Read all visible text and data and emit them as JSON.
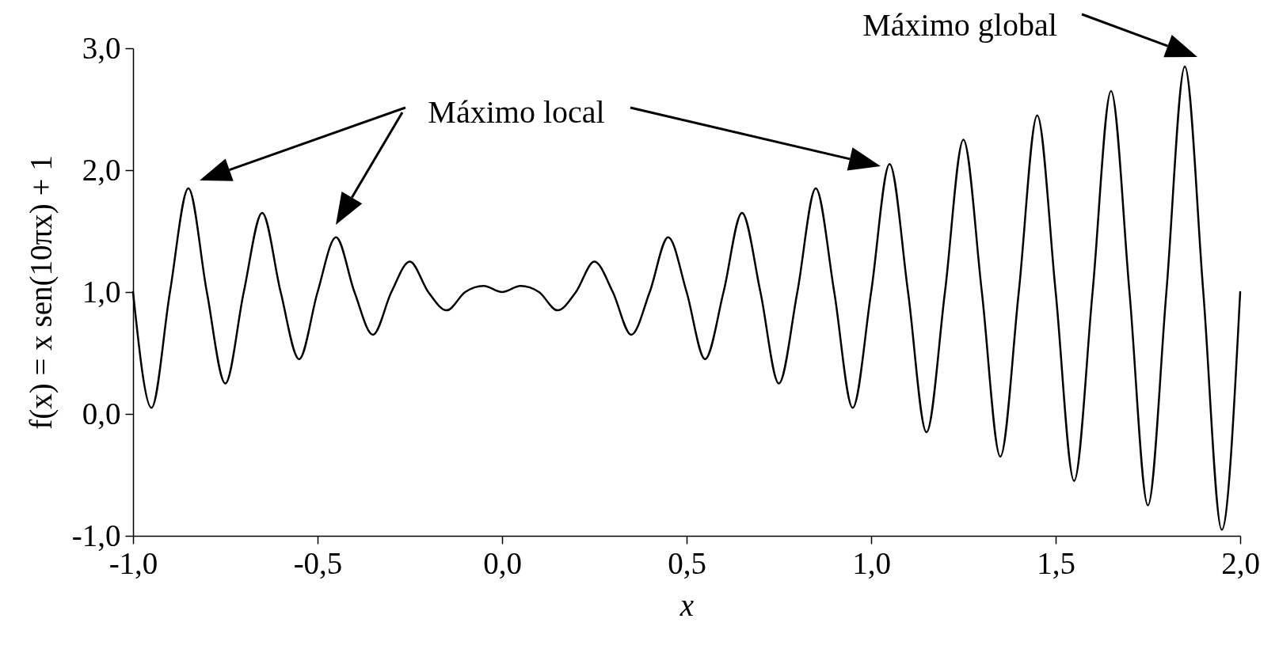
{
  "chart_data": {
    "type": "line",
    "xlabel": "x",
    "ylabel": "f(x) = x sen(10πx) + 1",
    "x": [
      -1.0,
      -0.95,
      -0.9,
      -0.85,
      -0.8,
      -0.75,
      -0.7,
      -0.65,
      -0.6,
      -0.55,
      -0.5,
      -0.45,
      -0.4,
      -0.35,
      -0.3,
      -0.25,
      -0.2,
      -0.15,
      -0.1,
      -0.05,
      0.0,
      0.05,
      0.1,
      0.15,
      0.2,
      0.25,
      0.3,
      0.35,
      0.4,
      0.45,
      0.5,
      0.55,
      0.6,
      0.65,
      0.7,
      0.75,
      0.8,
      0.85,
      0.9,
      0.95,
      1.0,
      1.05,
      1.1,
      1.15,
      1.2,
      1.25,
      1.3,
      1.35,
      1.4,
      1.45,
      1.5,
      1.55,
      1.6,
      1.65,
      1.7,
      1.75,
      1.8,
      1.85,
      1.9,
      1.95,
      2.0
    ],
    "series": [
      {
        "color": "#000000",
        "values": [
          1,
          0.05,
          1,
          1.85,
          1,
          0.25,
          1,
          1.65,
          1,
          0.45,
          1,
          1.45,
          1,
          0.65,
          1,
          1.25,
          1,
          0.85,
          1,
          1.05,
          1,
          1.05,
          1,
          0.85,
          1,
          1.25,
          1,
          0.65,
          1,
          1.45,
          1,
          0.45,
          1,
          1.65,
          1,
          0.25,
          1,
          1.85,
          1,
          0.05,
          1,
          2.05,
          1,
          -0.15,
          1,
          2.25,
          1,
          -0.35,
          1,
          2.45,
          1,
          -0.55,
          1,
          2.65,
          1,
          -0.75,
          1,
          2.85,
          1,
          -0.95,
          1
        ]
      }
    ],
    "xlim": [
      -1,
      2
    ],
    "xticks": [
      {
        "value": -1,
        "label": "-1,0"
      },
      {
        "value": -0.5,
        "label": "-0,5"
      },
      {
        "value": 0,
        "label": "0,0"
      },
      {
        "value": 0.5,
        "label": "0,5"
      },
      {
        "value": 1,
        "label": "1,0"
      },
      {
        "value": 1.5,
        "label": "1,5"
      },
      {
        "value": 2,
        "label": "2,0"
      }
    ],
    "ylim": [
      -1,
      3
    ],
    "yticks": [
      {
        "value": -1,
        "label": "-1,0"
      },
      {
        "value": 0,
        "label": "0,0"
      },
      {
        "value": 1,
        "label": "1,0"
      },
      {
        "value": 2,
        "label": "2,0"
      },
      {
        "value": 3,
        "label": "3,0"
      }
    ],
    "grid": false,
    "legend": false,
    "marker": "none",
    "line_style": "solid",
    "annotations": [
      "Máximo local",
      "Máximo global"
    ]
  }
}
